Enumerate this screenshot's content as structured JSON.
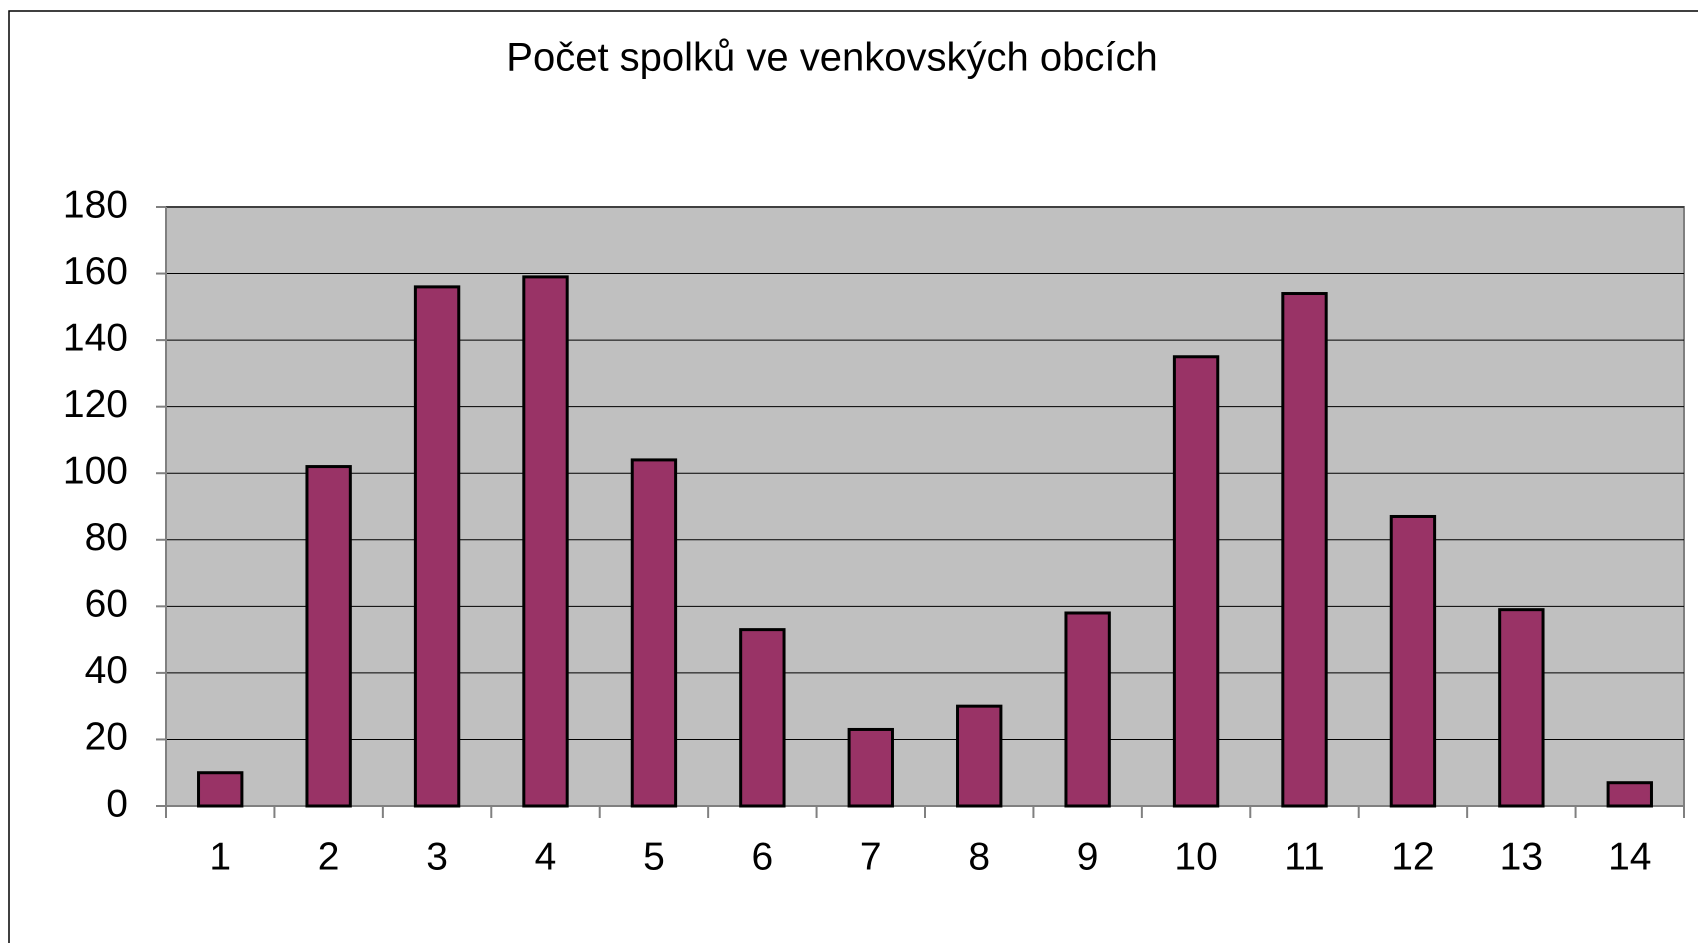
{
  "chart_data": {
    "type": "bar",
    "title": "Počet spolků ve venkovských obcích",
    "categories": [
      "1",
      "2",
      "3",
      "4",
      "5",
      "6",
      "7",
      "8",
      "9",
      "10",
      "11",
      "12",
      "13",
      "14"
    ],
    "values": [
      10,
      102,
      156,
      159,
      104,
      53,
      23,
      30,
      58,
      135,
      154,
      87,
      59,
      7
    ],
    "color": "#993366",
    "ylim": [
      0,
      180
    ],
    "yticks": [
      0,
      20,
      40,
      60,
      80,
      100,
      120,
      140,
      160,
      180
    ],
    "grid": true
  }
}
